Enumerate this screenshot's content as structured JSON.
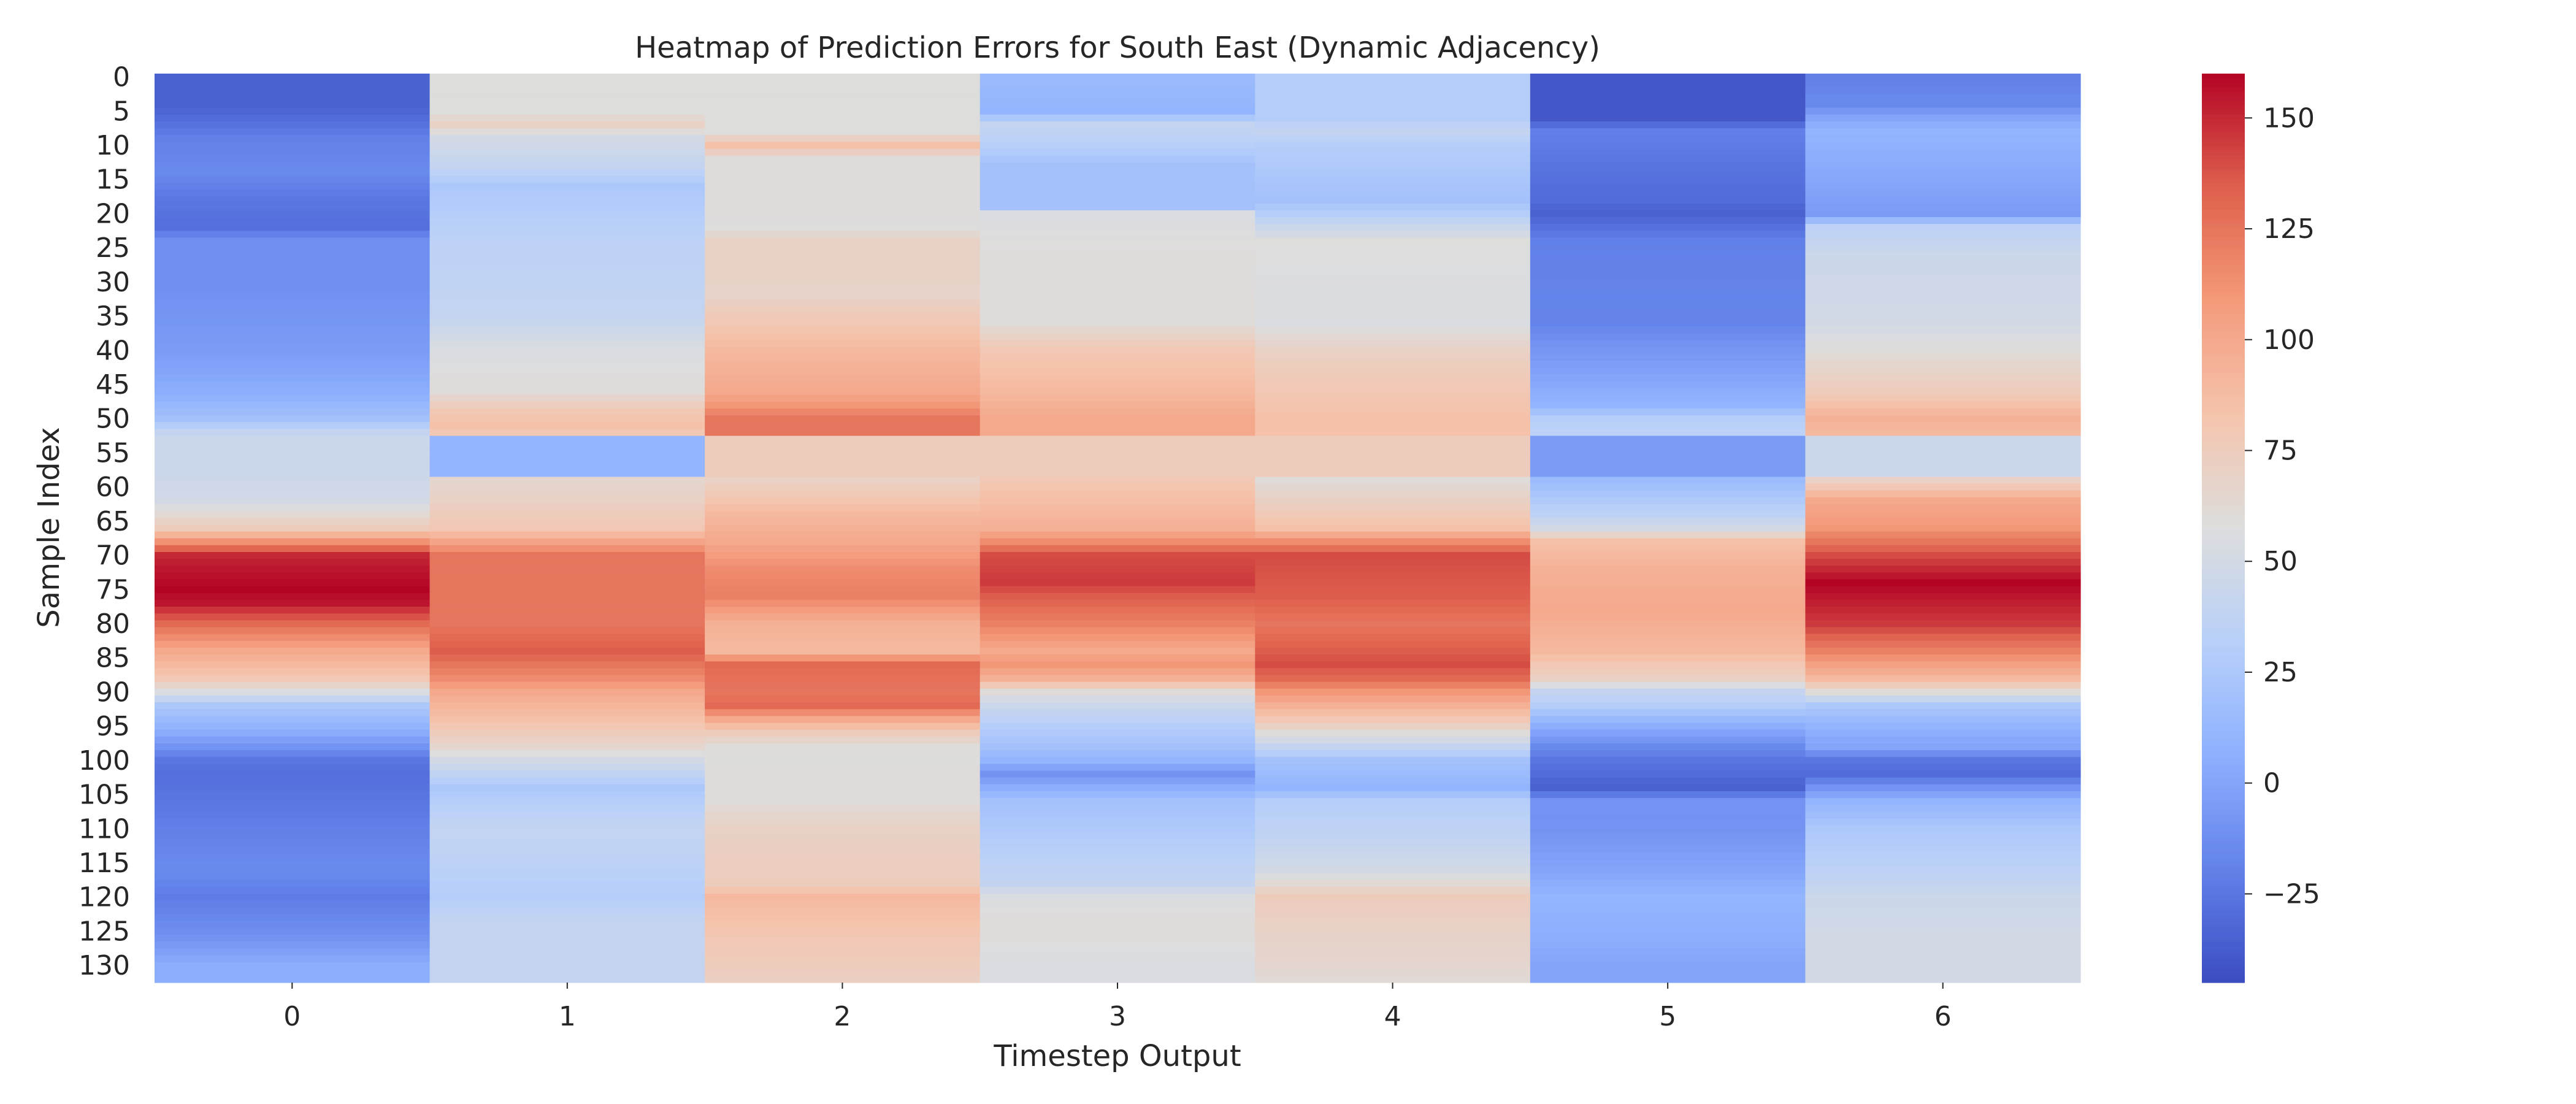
{
  "chart_data": {
    "type": "heatmap",
    "title": "Heatmap of Prediction Errors for South East (Dynamic Adjacency)",
    "xlabel": "Timestep Output",
    "ylabel": "Sample Index",
    "x_ticks": [
      "0",
      "1",
      "2",
      "3",
      "4",
      "5",
      "6"
    ],
    "y_ticks": [
      "0",
      "5",
      "10",
      "15",
      "20",
      "25",
      "30",
      "35",
      "40",
      "45",
      "50",
      "55",
      "60",
      "65",
      "70",
      "75",
      "80",
      "85",
      "90",
      "95",
      "100",
      "105",
      "110",
      "115",
      "120",
      "125",
      "130"
    ],
    "rows": 133,
    "colormap": "coolwarm",
    "colorbar": {
      "vmin": -45,
      "vmax": 160,
      "ticks": [
        -25,
        0,
        25,
        50,
        75,
        100,
        125,
        150
      ],
      "tick_labels": [
        "−25",
        "0",
        "25",
        "50",
        "75",
        "100",
        "125",
        "150"
      ]
    },
    "series": [
      {
        "column": 0,
        "keyframes": [
          [
            0,
            -35
          ],
          [
            4,
            -35
          ],
          [
            6,
            -30
          ],
          [
            9,
            -20
          ],
          [
            14,
            -15
          ],
          [
            18,
            -25
          ],
          [
            22,
            -28
          ],
          [
            24,
            -12
          ],
          [
            30,
            -12
          ],
          [
            40,
            -5
          ],
          [
            46,
            5
          ],
          [
            50,
            20
          ],
          [
            52,
            40
          ],
          [
            53,
            45
          ],
          [
            58,
            45
          ],
          [
            62,
            50
          ],
          [
            66,
            75
          ],
          [
            70,
            150
          ],
          [
            72,
            155
          ],
          [
            75,
            160
          ],
          [
            77,
            155
          ],
          [
            80,
            130
          ],
          [
            84,
            100
          ],
          [
            88,
            80
          ],
          [
            90,
            55
          ],
          [
            92,
            25
          ],
          [
            95,
            10
          ],
          [
            98,
            -10
          ],
          [
            100,
            -25
          ],
          [
            102,
            -28
          ],
          [
            106,
            -25
          ],
          [
            112,
            -18
          ],
          [
            116,
            -15
          ],
          [
            120,
            -22
          ],
          [
            126,
            -10
          ],
          [
            130,
            5
          ],
          [
            132,
            5
          ]
        ]
      },
      {
        "column": 1,
        "keyframes": [
          [
            0,
            58
          ],
          [
            5,
            58
          ],
          [
            7,
            70
          ],
          [
            9,
            50
          ],
          [
            13,
            40
          ],
          [
            16,
            25
          ],
          [
            20,
            30
          ],
          [
            24,
            35
          ],
          [
            35,
            40
          ],
          [
            40,
            55
          ],
          [
            46,
            60
          ],
          [
            49,
            80
          ],
          [
            51,
            85
          ],
          [
            52,
            80
          ],
          [
            53,
            10
          ],
          [
            58,
            10
          ],
          [
            59,
            65
          ],
          [
            62,
            70
          ],
          [
            66,
            80
          ],
          [
            70,
            125
          ],
          [
            75,
            125
          ],
          [
            80,
            125
          ],
          [
            84,
            135
          ],
          [
            88,
            115
          ],
          [
            90,
            100
          ],
          [
            94,
            85
          ],
          [
            96,
            75
          ],
          [
            98,
            65
          ],
          [
            100,
            50
          ],
          [
            104,
            25
          ],
          [
            106,
            30
          ],
          [
            110,
            40
          ],
          [
            115,
            35
          ],
          [
            120,
            30
          ],
          [
            124,
            40
          ],
          [
            130,
            40
          ],
          [
            132,
            40
          ]
        ]
      },
      {
        "column": 2,
        "keyframes": [
          [
            0,
            58
          ],
          [
            8,
            58
          ],
          [
            10,
            85
          ],
          [
            12,
            60
          ],
          [
            22,
            58
          ],
          [
            24,
            70
          ],
          [
            32,
            68
          ],
          [
            36,
            80
          ],
          [
            40,
            90
          ],
          [
            46,
            100
          ],
          [
            48,
            110
          ],
          [
            50,
            125
          ],
          [
            52,
            125
          ],
          [
            53,
            75
          ],
          [
            58,
            75
          ],
          [
            59,
            70
          ],
          [
            64,
            90
          ],
          [
            68,
            100
          ],
          [
            72,
            115
          ],
          [
            76,
            120
          ],
          [
            80,
            95
          ],
          [
            84,
            90
          ],
          [
            86,
            130
          ],
          [
            90,
            125
          ],
          [
            92,
            130
          ],
          [
            94,
            100
          ],
          [
            96,
            75
          ],
          [
            98,
            60
          ],
          [
            100,
            58
          ],
          [
            106,
            60
          ],
          [
            110,
            70
          ],
          [
            118,
            75
          ],
          [
            120,
            90
          ],
          [
            126,
            80
          ],
          [
            130,
            75
          ],
          [
            132,
            72
          ]
        ]
      },
      {
        "column": 3,
        "keyframes": [
          [
            0,
            15
          ],
          [
            5,
            10
          ],
          [
            7,
            40
          ],
          [
            9,
            35
          ],
          [
            13,
            20
          ],
          [
            19,
            20
          ],
          [
            20,
            55
          ],
          [
            24,
            58
          ],
          [
            36,
            60
          ],
          [
            40,
            80
          ],
          [
            46,
            90
          ],
          [
            50,
            100
          ],
          [
            52,
            100
          ],
          [
            53,
            75
          ],
          [
            58,
            75
          ],
          [
            59,
            80
          ],
          [
            66,
            95
          ],
          [
            68,
            115
          ],
          [
            70,
            140
          ],
          [
            74,
            145
          ],
          [
            76,
            135
          ],
          [
            80,
            120
          ],
          [
            84,
            100
          ],
          [
            86,
            110
          ],
          [
            88,
            95
          ],
          [
            90,
            60
          ],
          [
            92,
            45
          ],
          [
            95,
            30
          ],
          [
            98,
            20
          ],
          [
            100,
            10
          ],
          [
            102,
            -10
          ],
          [
            106,
            20
          ],
          [
            112,
            30
          ],
          [
            118,
            40
          ],
          [
            120,
            55
          ],
          [
            124,
            60
          ],
          [
            130,
            55
          ],
          [
            132,
            55
          ]
        ]
      },
      {
        "column": 4,
        "keyframes": [
          [
            0,
            30
          ],
          [
            6,
            30
          ],
          [
            8,
            40
          ],
          [
            10,
            30
          ],
          [
            14,
            25
          ],
          [
            18,
            20
          ],
          [
            20,
            30
          ],
          [
            24,
            58
          ],
          [
            36,
            55
          ],
          [
            40,
            70
          ],
          [
            46,
            80
          ],
          [
            50,
            85
          ],
          [
            52,
            85
          ],
          [
            53,
            75
          ],
          [
            58,
            75
          ],
          [
            59,
            60
          ],
          [
            66,
            85
          ],
          [
            68,
            115
          ],
          [
            70,
            140
          ],
          [
            76,
            135
          ],
          [
            80,
            125
          ],
          [
            84,
            135
          ],
          [
            86,
            140
          ],
          [
            88,
            130
          ],
          [
            90,
            110
          ],
          [
            92,
            95
          ],
          [
            94,
            80
          ],
          [
            96,
            60
          ],
          [
            98,
            40
          ],
          [
            100,
            20
          ],
          [
            104,
            10
          ],
          [
            106,
            30
          ],
          [
            112,
            40
          ],
          [
            116,
            50
          ],
          [
            120,
            75
          ],
          [
            124,
            70
          ],
          [
            130,
            65
          ],
          [
            132,
            62
          ]
        ]
      },
      {
        "column": 5,
        "keyframes": [
          [
            0,
            -40
          ],
          [
            6,
            -40
          ],
          [
            8,
            -20
          ],
          [
            12,
            -25
          ],
          [
            18,
            -30
          ],
          [
            20,
            -35
          ],
          [
            24,
            -20
          ],
          [
            36,
            -18
          ],
          [
            40,
            -8
          ],
          [
            44,
            0
          ],
          [
            48,
            10
          ],
          [
            50,
            30
          ],
          [
            52,
            35
          ],
          [
            53,
            -5
          ],
          [
            58,
            -5
          ],
          [
            59,
            15
          ],
          [
            64,
            35
          ],
          [
            66,
            50
          ],
          [
            68,
            85
          ],
          [
            72,
            95
          ],
          [
            78,
            100
          ],
          [
            84,
            90
          ],
          [
            88,
            70
          ],
          [
            90,
            40
          ],
          [
            92,
            30
          ],
          [
            95,
            5
          ],
          [
            98,
            -15
          ],
          [
            100,
            -25
          ],
          [
            102,
            -30
          ],
          [
            104,
            -35
          ],
          [
            106,
            -10
          ],
          [
            110,
            -10
          ],
          [
            116,
            0
          ],
          [
            120,
            10
          ],
          [
            126,
            5
          ],
          [
            130,
            0
          ],
          [
            132,
            0
          ]
        ]
      },
      {
        "column": 6,
        "keyframes": [
          [
            0,
            -20
          ],
          [
            4,
            -15
          ],
          [
            6,
            0
          ],
          [
            8,
            10
          ],
          [
            12,
            5
          ],
          [
            16,
            0
          ],
          [
            20,
            -5
          ],
          [
            22,
            35
          ],
          [
            26,
            45
          ],
          [
            36,
            50
          ],
          [
            40,
            60
          ],
          [
            46,
            75
          ],
          [
            48,
            85
          ],
          [
            50,
            95
          ],
          [
            52,
            90
          ],
          [
            53,
            45
          ],
          [
            58,
            45
          ],
          [
            59,
            70
          ],
          [
            62,
            100
          ],
          [
            66,
            110
          ],
          [
            70,
            140
          ],
          [
            72,
            150
          ],
          [
            74,
            160
          ],
          [
            76,
            155
          ],
          [
            80,
            145
          ],
          [
            84,
            120
          ],
          [
            88,
            90
          ],
          [
            90,
            60
          ],
          [
            92,
            25
          ],
          [
            94,
            15
          ],
          [
            96,
            5
          ],
          [
            98,
            0
          ],
          [
            100,
            -25
          ],
          [
            102,
            -30
          ],
          [
            106,
            10
          ],
          [
            110,
            25
          ],
          [
            116,
            35
          ],
          [
            120,
            45
          ],
          [
            126,
            50
          ],
          [
            132,
            50
          ]
        ]
      }
    ]
  }
}
